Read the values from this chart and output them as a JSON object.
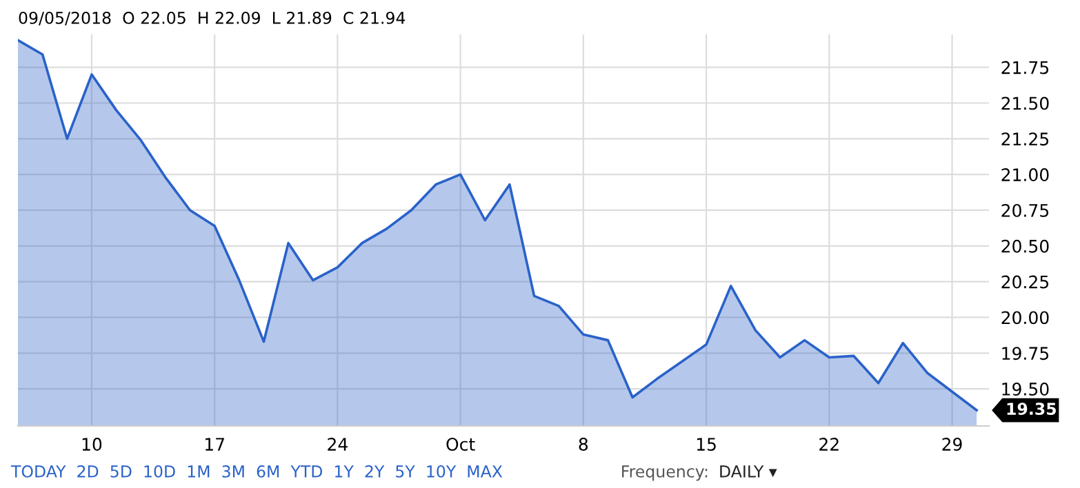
{
  "chart_data": {
    "type": "area",
    "categories": [
      null,
      null,
      null,
      "10",
      null,
      null,
      null,
      null,
      "17",
      null,
      null,
      null,
      null,
      "24",
      null,
      null,
      null,
      null,
      "Oct",
      null,
      null,
      null,
      null,
      "8",
      null,
      null,
      null,
      null,
      "15",
      null,
      null,
      null,
      null,
      "22",
      null,
      null,
      null,
      null,
      "29",
      null
    ],
    "series": [
      {
        "color": "#2a62c9",
        "values": [
          21.94,
          21.84,
          21.25,
          21.7,
          21.45,
          21.24,
          20.98,
          20.75,
          20.64,
          20.26,
          19.83,
          20.52,
          20.26,
          20.35,
          20.52,
          20.62,
          20.75,
          20.93,
          21.0,
          20.68,
          20.93,
          20.15,
          20.08,
          19.88,
          19.84,
          19.44,
          19.57,
          19.69,
          19.81,
          20.22,
          19.91,
          19.72,
          19.84,
          19.72,
          19.73,
          19.54,
          19.82,
          19.61,
          19.48,
          19.35
        ]
      }
    ],
    "ylim": [
      19.24,
      21.98
    ],
    "yticks": [
      {
        "value": 19.5,
        "label": "19.50"
      },
      {
        "value": 19.75,
        "label": "19.75"
      },
      {
        "value": 20.0,
        "label": "20.00"
      },
      {
        "value": 20.25,
        "label": "20.25"
      },
      {
        "value": 20.5,
        "label": "20.50"
      },
      {
        "value": 20.75,
        "label": "20.75"
      },
      {
        "value": 21.0,
        "label": "21.00"
      },
      {
        "value": 21.25,
        "label": "21.25"
      },
      {
        "value": 21.5,
        "label": "21.50"
      },
      {
        "value": 21.75,
        "label": "21.75"
      }
    ],
    "grid": true,
    "marker": "none",
    "line_style": "solid",
    "annotations": [
      "09/05/2018  O 22.05  H 22.09  L 21.89  C 21.94",
      "19.35",
      "TODAY  2D  5D  10D  1M  3M  6M  YTD  1Y  2Y  5Y  10Y  MAX",
      "Frequency:",
      "DAILY ▾"
    ]
  }
}
